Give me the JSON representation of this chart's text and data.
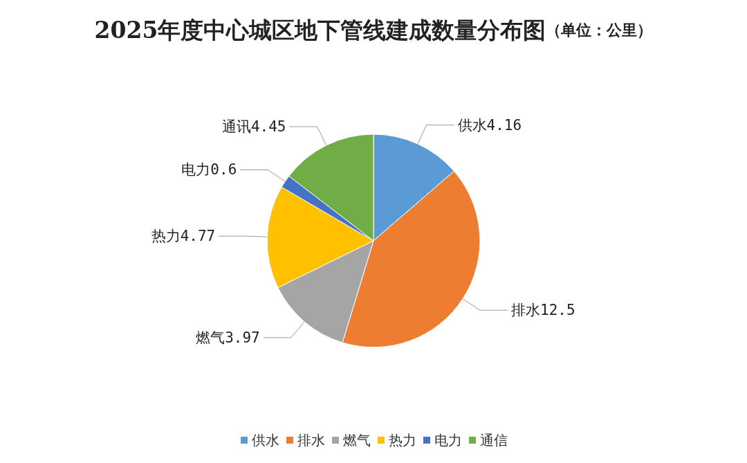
{
  "chart_data": {
    "type": "pie",
    "title": "2025年度中心城区地下管线建成数量分布图",
    "subtitle": "（单位：公里）",
    "categories": [
      "供水",
      "排水",
      "燃气",
      "热力",
      "电力",
      "通信"
    ],
    "values": [
      4.16,
      12.5,
      3.97,
      4.77,
      0.6,
      4.45
    ],
    "value_labels": [
      "供水4.16",
      "排水12.5",
      "燃气3.97",
      "热力4.77",
      "电力0.6",
      "通讯4.45"
    ],
    "colors": [
      "#5b9bd5",
      "#ed7d31",
      "#a5a5a5",
      "#ffc000",
      "#4472c4",
      "#70ad47"
    ],
    "legend": "bottom"
  }
}
